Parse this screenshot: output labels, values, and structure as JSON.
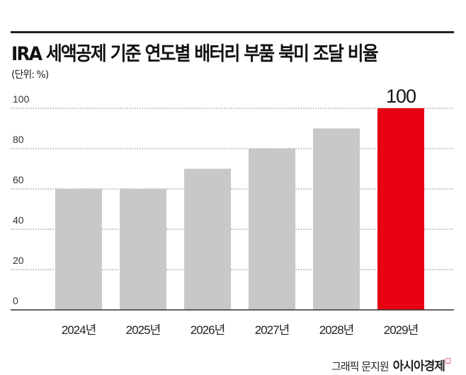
{
  "chart_data": {
    "type": "bar",
    "title": "IRA 세액공제 기준 연도별 배터리 부품 북미 조달 비율",
    "unit": "(단위: %)",
    "categories": [
      "2024년",
      "2025년",
      "2026년",
      "2027년",
      "2028년",
      "2029년"
    ],
    "values": [
      60,
      60,
      70,
      80,
      90,
      100
    ],
    "highlight_label": "100",
    "yticks": [
      "0",
      "20",
      "40",
      "60",
      "80",
      "100"
    ],
    "ylim": [
      0,
      100
    ],
    "grid": true,
    "colors": {
      "bar": "#c8c8c8",
      "highlight": "#e60012"
    }
  },
  "credit": {
    "text": "그래픽 문지원",
    "brand": "아시아경제"
  }
}
